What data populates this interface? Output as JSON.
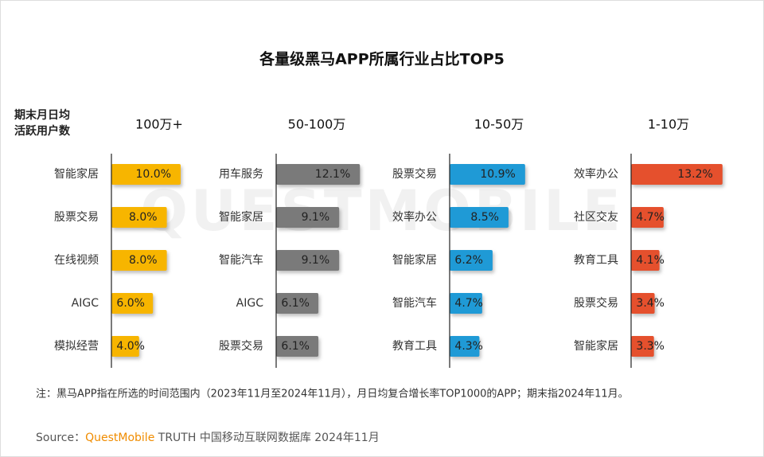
{
  "title": "各量级黑马APP所属行业占比TOP5",
  "watermark": "QUESTMOBILE",
  "row_header": [
    "期末月日均",
    "活跃用户数"
  ],
  "chart_data": [
    {
      "type": "bar",
      "orientation": "horizontal",
      "title": "100万+",
      "color": "#f7b500",
      "categories": [
        "智能家居",
        "股票交易",
        "在线视频",
        "AIGC",
        "模拟经营"
      ],
      "values": [
        10.0,
        8.0,
        8.0,
        6.0,
        4.0
      ],
      "value_labels": [
        "10.0%",
        "8.0%",
        "8.0%",
        "6.0%",
        "4.0%"
      ]
    },
    {
      "type": "bar",
      "orientation": "horizontal",
      "title": "50-100万",
      "color": "#7a7a7a",
      "categories": [
        "用车服务",
        "智能家居",
        "智能汽车",
        "AIGC",
        "股票交易"
      ],
      "values": [
        12.1,
        9.1,
        9.1,
        6.1,
        6.1
      ],
      "value_labels": [
        "12.1%",
        "9.1%",
        "9.1%",
        "6.1%",
        "6.1%"
      ]
    },
    {
      "type": "bar",
      "orientation": "horizontal",
      "title": "10-50万",
      "color": "#1f9ad6",
      "categories": [
        "股票交易",
        "效率办公",
        "智能家居",
        "智能汽车",
        "教育工具"
      ],
      "values": [
        10.9,
        8.5,
        6.2,
        4.7,
        4.3
      ],
      "value_labels": [
        "10.9%",
        "8.5%",
        "6.2%",
        "4.7%",
        "4.3%"
      ]
    },
    {
      "type": "bar",
      "orientation": "horizontal",
      "title": "1-10万",
      "color": "#e5502d",
      "categories": [
        "效率办公",
        "社区交友",
        "教育工具",
        "股票交易",
        "智能家居"
      ],
      "values": [
        13.2,
        4.7,
        4.1,
        3.4,
        3.3
      ],
      "value_labels": [
        "13.2%",
        "4.7%",
        "4.1%",
        "3.4%",
        "3.3%"
      ]
    }
  ],
  "note": "注：黑马APP指在所选的时间范围内（2023年11月至2024年11月），月日均复合增长率TOP1000的APP；期末指2024年11月。",
  "source": {
    "label": "Source：",
    "brand": "QuestMobile",
    "text": "TRUTH 中国移动互联网数据库 2024年11月"
  }
}
